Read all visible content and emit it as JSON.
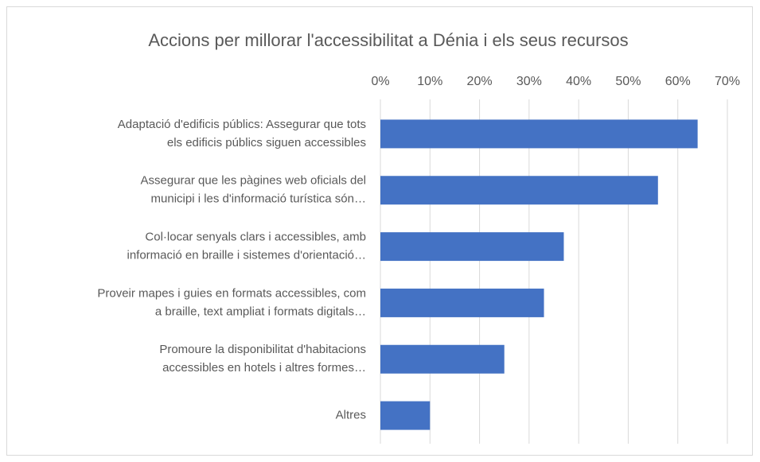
{
  "chart_data": {
    "type": "bar",
    "orientation": "horizontal",
    "title": "Accions per millorar l'accessibilitat a Dénia i els seus recursos",
    "categories": [
      [
        "Adaptació d'edificis públics: Assegurar que tots",
        "els edificis públics siguen accessibles"
      ],
      [
        "Assegurar que les pàgines web oficials del",
        "municipi i les d'informació turística són…"
      ],
      [
        "Col·locar senyals clars i accessibles, amb",
        "informació en braille i sistemes d'orientació…"
      ],
      [
        "Proveir mapes i guies en formats accessibles, com",
        "a braille, text ampliat i formats digitals…"
      ],
      [
        "Promoure la disponibilitat d'habitacions",
        "accessibles en hotels i altres formes…"
      ],
      [
        "Altres"
      ]
    ],
    "values": [
      64,
      56,
      37,
      33,
      25,
      10
    ],
    "color": "#4472c4",
    "xlim": [
      0,
      70
    ],
    "xticks": [
      {
        "value": 0,
        "label": "0%"
      },
      {
        "value": 10,
        "label": "10%"
      },
      {
        "value": 20,
        "label": "20%"
      },
      {
        "value": 30,
        "label": "30%"
      },
      {
        "value": 40,
        "label": "40%"
      },
      {
        "value": 50,
        "label": "50%"
      },
      {
        "value": 60,
        "label": "60%"
      },
      {
        "value": 70,
        "label": "70%"
      }
    ],
    "grid": true
  }
}
